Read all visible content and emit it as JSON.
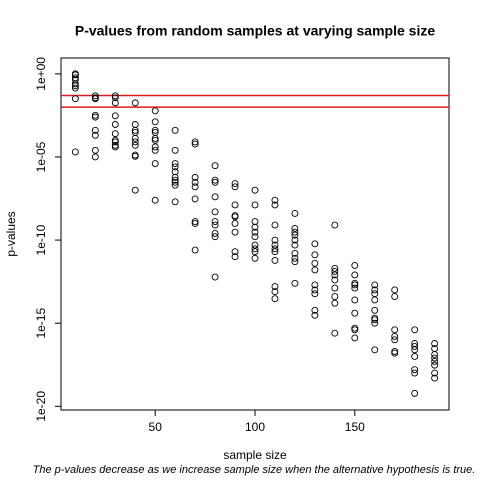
{
  "chart_data": {
    "type": "scatter",
    "title": "P-values from random samples at varying sample size",
    "x_label": "sample size",
    "y_label": "p-values",
    "caption": "The p-values decrease as we increase sample size when the alternative hypothesis is true.",
    "log_y": true,
    "xlim": [
      2.8,
      197.2
    ],
    "xticks": [
      50,
      100,
      150
    ],
    "ylim": [
      6e-21,
      9
    ],
    "yticks": [
      {
        "value": 1,
        "label": "1e+00"
      },
      {
        "value": 1e-05,
        "label": "1e-05"
      },
      {
        "value": 1e-10,
        "label": "1e-10"
      },
      {
        "value": 1e-15,
        "label": "1e-15"
      },
      {
        "value": 1e-20,
        "label": "1e-20"
      }
    ],
    "reference_lines": [
      0.05,
      0.01
    ],
    "reference_color": "#e41a1c",
    "color": "#000000",
    "x": [
      10,
      10,
      10,
      10,
      10,
      10,
      10,
      10,
      10,
      20,
      20,
      20,
      20,
      20,
      20,
      20,
      20,
      20,
      30,
      30,
      30,
      30,
      30,
      30,
      30,
      30,
      30,
      30,
      40,
      40,
      40,
      40,
      40,
      40,
      40,
      40,
      40,
      40,
      50,
      50,
      50,
      50,
      50,
      50,
      50,
      50,
      50,
      50,
      60,
      60,
      60,
      60,
      60,
      60,
      60,
      60,
      60,
      60,
      70,
      70,
      70,
      70,
      70,
      70,
      70,
      70,
      70,
      80,
      80,
      80,
      80,
      80,
      80,
      80,
      80,
      80,
      80,
      90,
      90,
      90,
      90,
      90,
      90,
      90,
      90,
      90,
      100,
      100,
      100,
      100,
      100,
      100,
      100,
      100,
      100,
      100,
      110,
      110,
      110,
      110,
      110,
      110,
      110,
      110,
      110,
      110,
      110,
      120,
      120,
      120,
      120,
      120,
      120,
      120,
      120,
      120,
      120,
      130,
      130,
      130,
      130,
      130,
      130,
      130,
      130,
      130,
      140,
      140,
      140,
      140,
      140,
      140,
      140,
      140,
      140,
      150,
      150,
      150,
      150,
      150,
      150,
      150,
      150,
      150,
      150,
      160,
      160,
      160,
      160,
      160,
      160,
      160,
      160,
      160,
      170,
      170,
      170,
      170,
      170,
      170,
      170,
      180,
      180,
      180,
      180,
      180,
      180,
      180,
      180,
      190,
      190,
      190,
      190,
      190,
      190,
      190,
      190
    ],
    "values": [
      1,
      0.87,
      0.58,
      0.44,
      0.25,
      0.19,
      0.14,
      0.032,
      2e-05,
      0.048,
      0.036,
      0.032,
      0.0032,
      0.0025,
      0.0004,
      0.0002,
      2.5e-05,
      1e-05,
      0.048,
      0.036,
      0.018,
      0.003,
      0.0009,
      0.00025,
      0.0001,
      8e-05,
      5e-05,
      4e-05,
      0.018,
      0.0009,
      0.0004,
      0.0003,
      0.00013,
      8e-05,
      5e-05,
      1.3e-05,
      1.1e-05,
      1e-07,
      0.006,
      0.0013,
      0.0004,
      0.0003,
      0.00013,
      0.0001,
      4e-05,
      2.5e-05,
      4e-06,
      2.5e-08,
      0.0004,
      2.5e-05,
      4e-06,
      2.5e-06,
      1.3e-06,
      6e-07,
      4e-07,
      3e-07,
      2e-07,
      2e-08,
      8e-05,
      6e-05,
      6e-07,
      3e-07,
      1.6e-07,
      3e-08,
      1.3e-09,
      1e-09,
      2.5e-11,
      3e-06,
      4e-07,
      3e-07,
      4e-08,
      5e-09,
      1.3e-09,
      8e-10,
      2.5e-10,
      1.6e-10,
      6e-13,
      2.5e-07,
      1.6e-07,
      1.3e-08,
      3e-09,
      2.5e-09,
      1e-09,
      3e-10,
      2e-11,
      1e-11,
      1e-07,
      1.3e-08,
      1.3e-09,
      6e-10,
      3e-10,
      1.6e-10,
      5e-11,
      3e-11,
      2e-11,
      8e-12,
      2.5e-08,
      1.3e-08,
      8e-10,
      1e-10,
      5e-11,
      3e-11,
      2e-11,
      6e-12,
      1.6e-13,
      8e-14,
      3e-14,
      4e-09,
      5e-10,
      3e-10,
      2e-10,
      1e-10,
      5e-11,
      1.6e-11,
      8e-12,
      5e-12,
      2.5e-13,
      6e-11,
      1.3e-11,
      4e-12,
      1.6e-12,
      2e-13,
      1e-13,
      6e-14,
      6e-15,
      3e-15,
      8e-10,
      2e-12,
      1.3e-12,
      8e-13,
      4e-13,
      1.3e-13,
      4e-14,
      1.6e-14,
      2.5e-16,
      3e-12,
      8e-13,
      2.5e-13,
      2e-13,
      1.3e-13,
      2.5e-14,
      4e-15,
      5e-16,
      4e-16,
      1.3e-16,
      2e-13,
      1e-13,
      6e-14,
      2.5e-14,
      6e-15,
      2e-15,
      1.6e-15,
      1e-15,
      2.5e-17,
      1e-13,
      4e-14,
      4e-16,
      1.6e-16,
      1e-16,
      2e-17,
      1.6e-17,
      4e-16,
      6e-17,
      4e-17,
      2.5e-17,
      1e-17,
      1.6e-18,
      1e-18,
      6e-20,
      6e-17,
      3e-17,
      1.3e-17,
      8e-18,
      5e-18,
      3e-18,
      1e-18,
      5e-19
    ]
  }
}
